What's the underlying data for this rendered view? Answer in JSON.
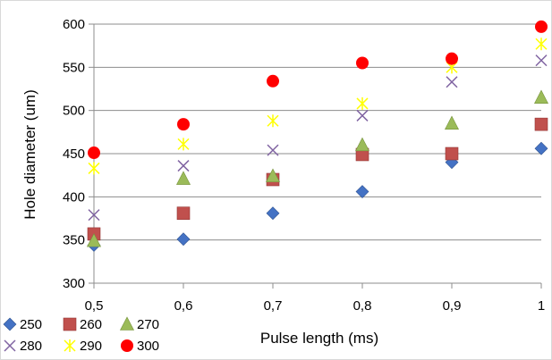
{
  "chart_data": {
    "type": "scatter",
    "title": "",
    "xlabel": "Pulse length (ms)",
    "ylabel": "Hole diameter (um)",
    "x": [
      0.5,
      0.6,
      0.7,
      0.8,
      0.9,
      1.0
    ],
    "x_tick_labels": [
      "0,5",
      "0,6",
      "0,7",
      "0,8",
      "0,9",
      "1"
    ],
    "xlim": [
      0.5,
      1.0
    ],
    "ylim": [
      300,
      600
    ],
    "y_ticks": [
      300,
      350,
      400,
      450,
      500,
      550,
      600
    ],
    "y_tick_labels": [
      "300",
      "350",
      "400",
      "450",
      "500",
      "550",
      "600"
    ],
    "grid": "horizontal",
    "legend_position": "bottom-left",
    "series": [
      {
        "name": "250",
        "marker": "diamond",
        "color": "#4472C4",
        "values": [
          344,
          351,
          381,
          406,
          440,
          456
        ]
      },
      {
        "name": "260",
        "marker": "square",
        "color": "#C0504D",
        "values": [
          357,
          381,
          420,
          449,
          450,
          484
        ]
      },
      {
        "name": "270",
        "marker": "triangle",
        "color": "#9BBB59",
        "values": [
          349,
          421,
          424,
          460,
          485,
          515
        ]
      },
      {
        "name": "280",
        "marker": "x",
        "color": "#8064A2",
        "values": [
          379,
          436,
          454,
          494,
          533,
          558
        ]
      },
      {
        "name": "290",
        "marker": "star",
        "color": "#FFFF00",
        "values": [
          433,
          461,
          488,
          508,
          550,
          577
        ]
      },
      {
        "name": "300",
        "marker": "circle",
        "color": "#FF0000",
        "values": [
          451,
          484,
          534,
          555,
          560,
          597
        ]
      }
    ]
  }
}
